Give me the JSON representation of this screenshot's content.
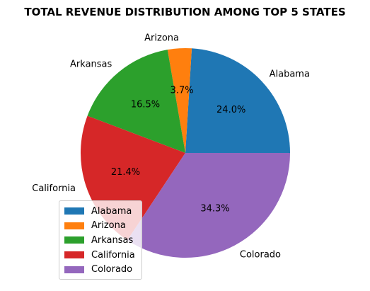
{
  "chart_data": {
    "type": "pie",
    "title": "TOTAL REVENUE DISTRIBUTION AMONG TOP 5 STATES",
    "categories": [
      "Alabama",
      "Arizona",
      "Arkansas",
      "California",
      "Colorado"
    ],
    "values": [
      24.0,
      3.7,
      16.5,
      21.4,
      34.3
    ],
    "percent_labels": [
      "24.0%",
      "3.7%",
      "16.5%",
      "21.4%",
      "34.3%"
    ],
    "colors": [
      "#1f77b4",
      "#ff7f0e",
      "#2ca02c",
      "#d62728",
      "#9467bd"
    ],
    "start_angle_deg": 0,
    "direction": "counterclockwise",
    "legend": {
      "placement": "lower-left",
      "entries": [
        "Alabama",
        "Arizona",
        "Arkansas",
        "California",
        "Colorado"
      ]
    }
  }
}
